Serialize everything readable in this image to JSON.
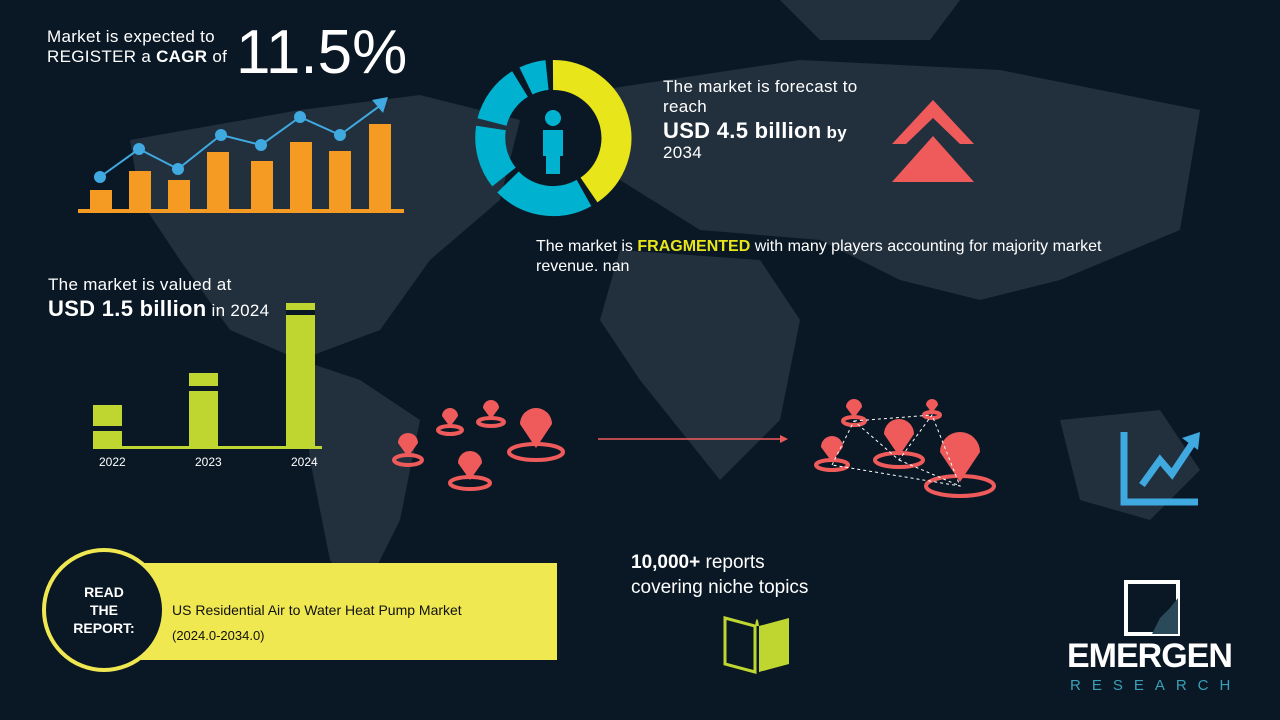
{
  "cagr": {
    "line1": "Market is expected to",
    "line2_pre": "REGISTER a ",
    "line2_bold": "CAGR",
    "line2_post": " of",
    "value": "11.5%"
  },
  "forecast": {
    "line1": "The market is forecast to",
    "line2": "reach",
    "value": "USD 4.5 billion",
    "by": " by",
    "year": "2034"
  },
  "fragmented": {
    "pre": "The market is ",
    "highlight": "FRAGMENTED",
    "post": " with many players accounting for majority market",
    "line2": "revenue. nan"
  },
  "valued": {
    "line1": "The market is valued at",
    "value": "USD 1.5 billion",
    "post": " in 2024"
  },
  "value_chart": {
    "categories": [
      "2022",
      "2023",
      "2024"
    ]
  },
  "reports": {
    "line1_bold": "10,000+",
    "line1_post": " reports",
    "line2": "covering niche topics"
  },
  "read_report": {
    "badge": [
      "READ",
      "THE",
      "REPORT:"
    ],
    "title": "US Residential Air to Water Heat Pump Market",
    "period": "(2024.0-2034.0)"
  },
  "logo": {
    "name": "EMERGEN",
    "sub": "RESEARCH"
  },
  "colors": {
    "background": "#0a1825",
    "orange": "#f59a23",
    "blue": "#3fa9e0",
    "yellow": "#e8e51a",
    "cyan": "#00b2cf",
    "red": "#ef5b5b",
    "green": "#bfd630",
    "banner": "#efe851"
  }
}
